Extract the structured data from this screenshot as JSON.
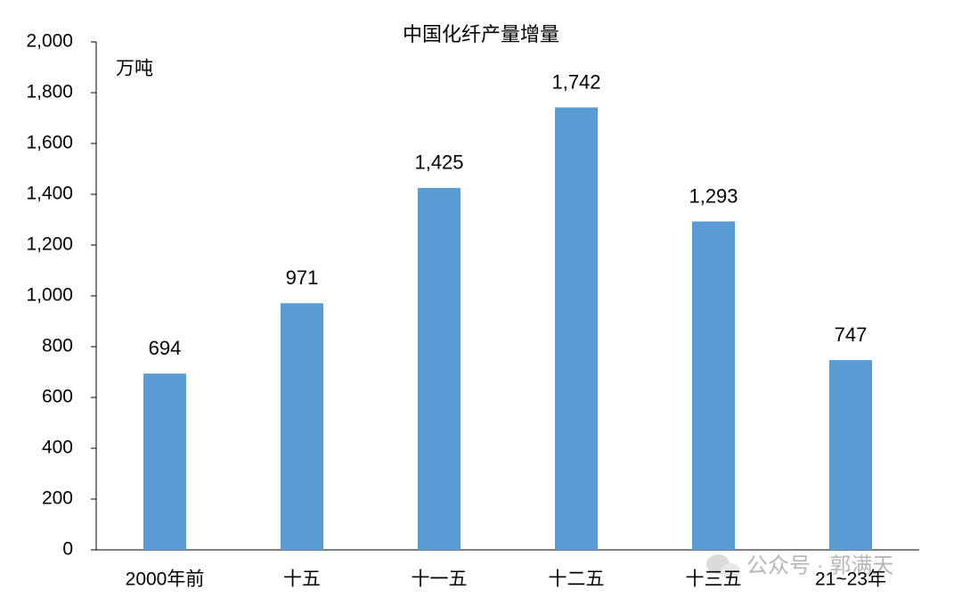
{
  "chart_data": {
    "type": "bar",
    "title": "中国化纤产量增量",
    "unit_label": "万吨",
    "categories": [
      "2000年前",
      "十五",
      "十一五",
      "十二五",
      "十三五",
      "21~23年"
    ],
    "values": [
      694,
      971,
      1425,
      1742,
      1293,
      747
    ],
    "value_labels": [
      "694",
      "971",
      "1,425",
      "1,742",
      "1,293",
      "747"
    ],
    "color": "#5b9bd5",
    "ylim": [
      0,
      2000
    ],
    "yticks": [
      0,
      200,
      400,
      600,
      800,
      {
        "value": 1000,
        "label": "1,000"
      },
      {
        "value": 1200,
        "label": "1,200"
      },
      {
        "value": 1400,
        "label": "1,400"
      },
      {
        "value": 1600,
        "label": "1,600"
      },
      {
        "value": 1800,
        "label": "1,800"
      },
      {
        "value": 2000,
        "label": "2,000"
      }
    ],
    "grid": false,
    "watermark": "公众号 · 郭满天"
  }
}
